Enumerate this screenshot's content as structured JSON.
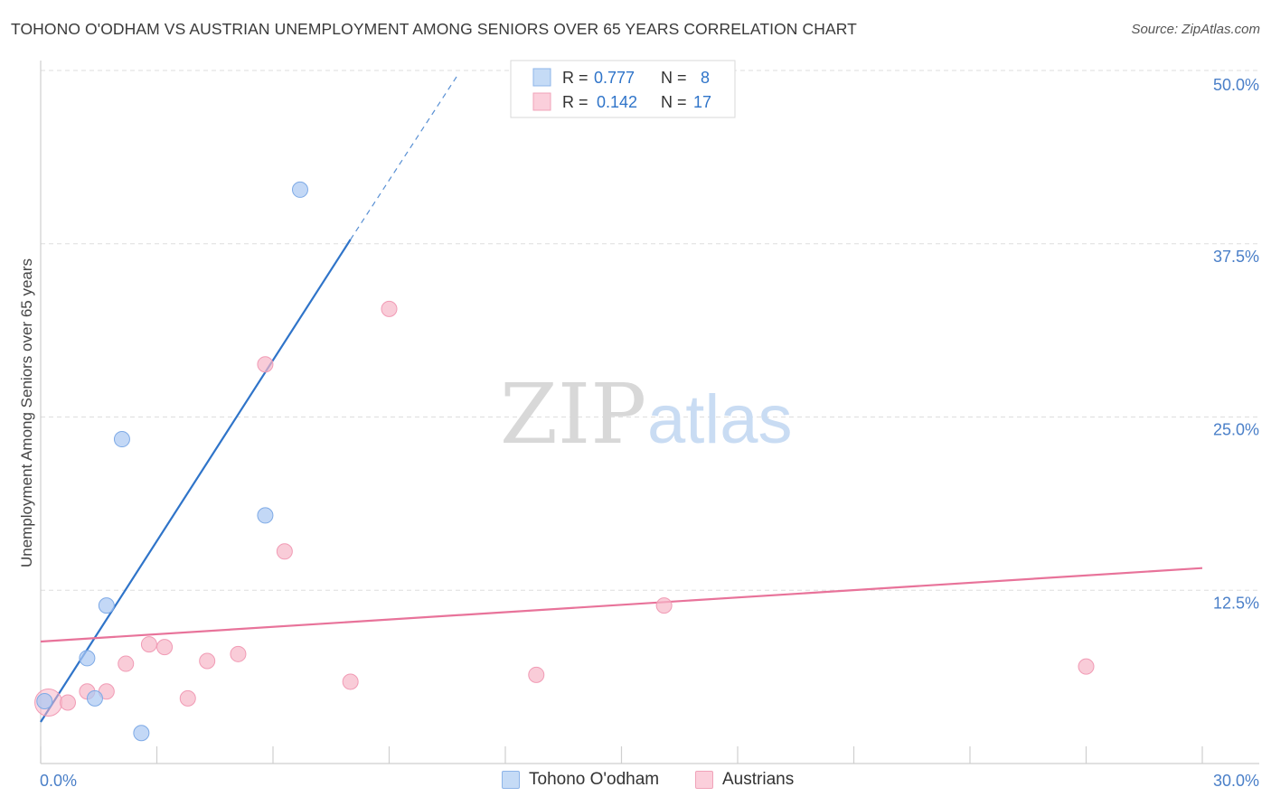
{
  "title": "TOHONO O'ODHAM VS AUSTRIAN UNEMPLOYMENT AMONG SENIORS OVER 65 YEARS CORRELATION CHART",
  "source": "Source: ZipAtlas.com",
  "watermark": {
    "zip": "ZIP",
    "atlas": "atlas"
  },
  "chart_data": {
    "type": "scatter",
    "ylabel": "Unemployment Among Seniors over 65 years",
    "xlim": [
      0,
      30
    ],
    "ylim": [
      0,
      50
    ],
    "x_tick_labels": [
      "0.0%",
      "30.0%"
    ],
    "y_ticks": [
      12.5,
      25.0,
      37.5,
      50.0
    ],
    "y_tick_labels": [
      "12.5%",
      "25.0%",
      "37.5%",
      "50.0%"
    ],
    "grid": true,
    "legend_position": "top-center",
    "series": [
      {
        "name": "Tohono O'odham",
        "color": "#a9c8f2",
        "line_color": "#2f74c9",
        "R": "0.777",
        "N": "8",
        "points": [
          {
            "x": 0.1,
            "y": 4.5
          },
          {
            "x": 1.4,
            "y": 4.7
          },
          {
            "x": 1.2,
            "y": 7.6
          },
          {
            "x": 1.7,
            "y": 11.4
          },
          {
            "x": 2.1,
            "y": 23.4
          },
          {
            "x": 2.6,
            "y": 2.2
          },
          {
            "x": 5.8,
            "y": 17.9
          },
          {
            "x": 6.7,
            "y": 41.4
          }
        ],
        "trend_solid": [
          [
            0.0,
            3.0
          ],
          [
            8.0,
            37.8
          ]
        ],
        "trend_dashed": [
          [
            8.0,
            37.8
          ],
          [
            10.8,
            49.8
          ]
        ]
      },
      {
        "name": "Austrians",
        "color": "#f7b6c8",
        "line_color": "#e8739a",
        "R": "0.142",
        "N": "17",
        "points": [
          {
            "x": 0.2,
            "y": 4.4
          },
          {
            "x": 0.7,
            "y": 4.4
          },
          {
            "x": 1.2,
            "y": 5.2
          },
          {
            "x": 1.7,
            "y": 5.2
          },
          {
            "x": 2.2,
            "y": 7.2
          },
          {
            "x": 2.8,
            "y": 8.6
          },
          {
            "x": 3.2,
            "y": 8.4
          },
          {
            "x": 3.8,
            "y": 4.7
          },
          {
            "x": 4.3,
            "y": 7.4
          },
          {
            "x": 5.1,
            "y": 7.9
          },
          {
            "x": 5.8,
            "y": 28.8
          },
          {
            "x": 6.3,
            "y": 15.3
          },
          {
            "x": 8.0,
            "y": 5.9
          },
          {
            "x": 9.0,
            "y": 32.8
          },
          {
            "x": 12.8,
            "y": 6.4
          },
          {
            "x": 16.1,
            "y": 11.4
          },
          {
            "x": 27.0,
            "y": 7.0
          }
        ],
        "trend_solid": [
          [
            0.0,
            8.8
          ],
          [
            30.0,
            14.1
          ]
        ]
      }
    ]
  }
}
